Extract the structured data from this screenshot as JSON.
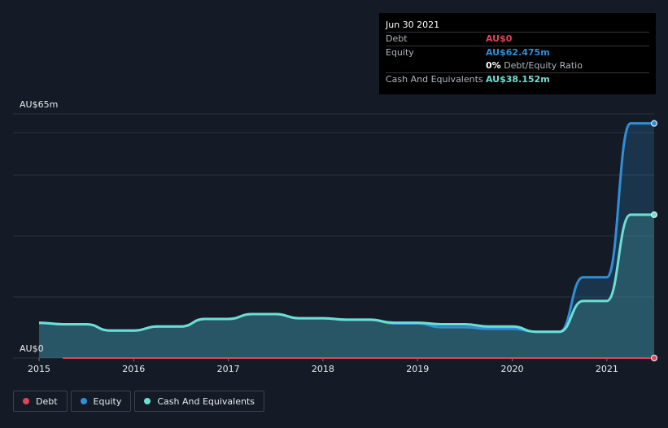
{
  "tooltip": {
    "date": "Jun 30 2021",
    "debt_label": "Debt",
    "debt_value": "AU$0",
    "equity_label": "Equity",
    "equity_value": "AU$62.475m",
    "ratio_value": "0%",
    "ratio_label": "Debt/Equity Ratio",
    "cash_label": "Cash And Equivalents",
    "cash_value": "AU$38.152m"
  },
  "legend": {
    "debt": "Debt",
    "equity": "Equity",
    "cash": "Cash And Equivalents"
  },
  "colors": {
    "background": "#151b26",
    "debt": "#e2435a",
    "equity": "#2f8fd8",
    "cash": "#6be0d2"
  },
  "chart_data": {
    "type": "line",
    "ylabel_top": "AU$65m",
    "ylabel_bottom": "AU$0",
    "ylim": [
      0,
      65
    ],
    "xlim": [
      2015.0,
      2021.5
    ],
    "x_ticks": [
      "2015",
      "2016",
      "2017",
      "2018",
      "2019",
      "2020",
      "2021"
    ],
    "grid": true,
    "legend_position": "bottom-left",
    "series": [
      {
        "name": "Debt",
        "x": [
          2015.25,
          2021.5
        ],
        "y": [
          0,
          0
        ]
      },
      {
        "name": "Equity",
        "x": [
          2015.0,
          2015.25,
          2015.5,
          2015.75,
          2016.0,
          2016.25,
          2016.5,
          2016.75,
          2017.0,
          2017.25,
          2017.5,
          2017.75,
          2018.0,
          2018.25,
          2018.5,
          2018.75,
          2019.0,
          2019.25,
          2019.5,
          2019.75,
          2020.0,
          2020.25,
          2020.5,
          2020.75,
          2021.0,
          2021.25,
          2021.5
        ],
        "y": [
          9.3,
          9.0,
          9.0,
          7.3,
          7.3,
          8.4,
          8.4,
          10.4,
          10.4,
          11.7,
          11.7,
          10.6,
          10.6,
          10.2,
          10.2,
          9.2,
          9.2,
          8.2,
          8.2,
          7.8,
          7.8,
          7.0,
          7.0,
          21.5,
          21.5,
          62.475,
          62.475
        ]
      },
      {
        "name": "Cash And Equivalents",
        "x": [
          2015.0,
          2015.25,
          2015.5,
          2015.75,
          2016.0,
          2016.25,
          2016.5,
          2016.75,
          2017.0,
          2017.25,
          2017.5,
          2017.75,
          2018.0,
          2018.25,
          2018.5,
          2018.75,
          2019.0,
          2019.25,
          2019.5,
          2019.75,
          2020.0,
          2020.25,
          2020.5,
          2020.75,
          2021.0,
          2021.25,
          2021.5
        ],
        "y": [
          9.4,
          9.0,
          9.0,
          7.3,
          7.3,
          8.4,
          8.4,
          10.4,
          10.4,
          11.7,
          11.7,
          10.6,
          10.6,
          10.2,
          10.2,
          9.4,
          9.4,
          9.0,
          9.0,
          8.4,
          8.4,
          7.0,
          7.0,
          15.2,
          15.2,
          38.152,
          38.152
        ]
      }
    ]
  }
}
